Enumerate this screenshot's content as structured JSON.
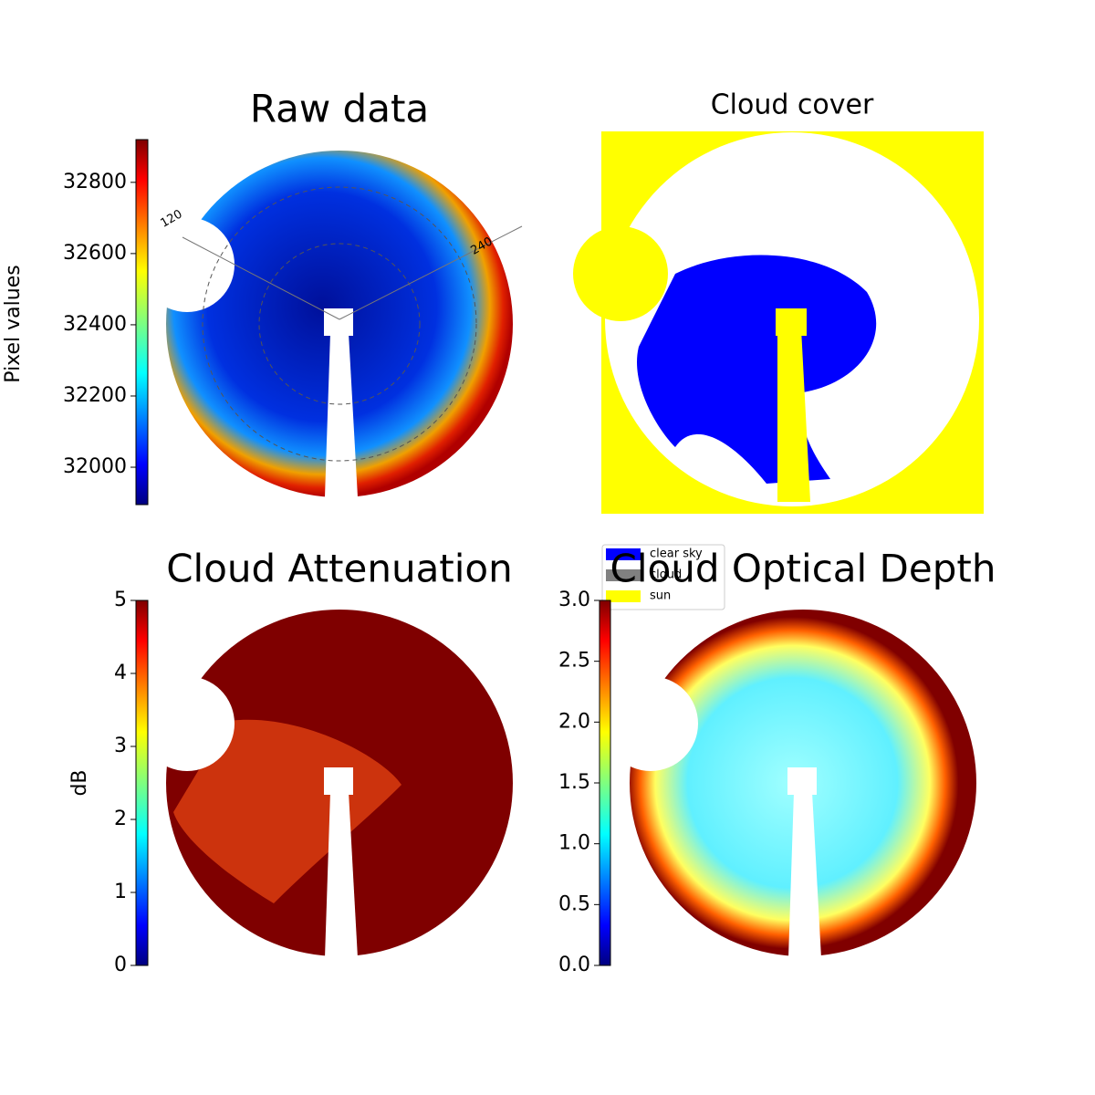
{
  "chart_data": [
    {
      "type": "image",
      "title": "Raw data",
      "annotations": [
        "120",
        "240"
      ],
      "colorbar": {
        "label": "Pixel values",
        "colormap": "jet",
        "lim": [
          31895,
          32920
        ],
        "ticks": [
          32000,
          32200,
          32400,
          32600,
          32800
        ]
      }
    },
    {
      "type": "image",
      "title": "Cloud cover",
      "legend": [
        {
          "name": "clear sky",
          "color": "#0000ff"
        },
        {
          "name": "cloud",
          "color": "#808080"
        },
        {
          "name": "sun",
          "color": "#ffff00"
        }
      ]
    },
    {
      "type": "image",
      "title": "Cloud Attenuation",
      "colorbar": {
        "label": "dB",
        "colormap": "jet",
        "lim": [
          0,
          5
        ],
        "ticks": [
          0,
          1,
          2,
          3,
          4,
          5
        ]
      }
    },
    {
      "type": "image",
      "title": "Cloud Optical Depth",
      "colorbar": {
        "colormap": "jet",
        "lim": [
          0,
          3
        ],
        "ticks": [
          {
            "value": 0,
            "label": "0.0"
          },
          {
            "value": 0.5,
            "label": "0.5"
          },
          {
            "value": 1,
            "label": "1.0"
          },
          {
            "value": 1.5,
            "label": "1.5"
          },
          {
            "value": 2,
            "label": "2.0"
          },
          {
            "value": 2.5,
            "label": "2.5"
          },
          {
            "value": 3,
            "label": "3.0"
          }
        ]
      }
    }
  ]
}
